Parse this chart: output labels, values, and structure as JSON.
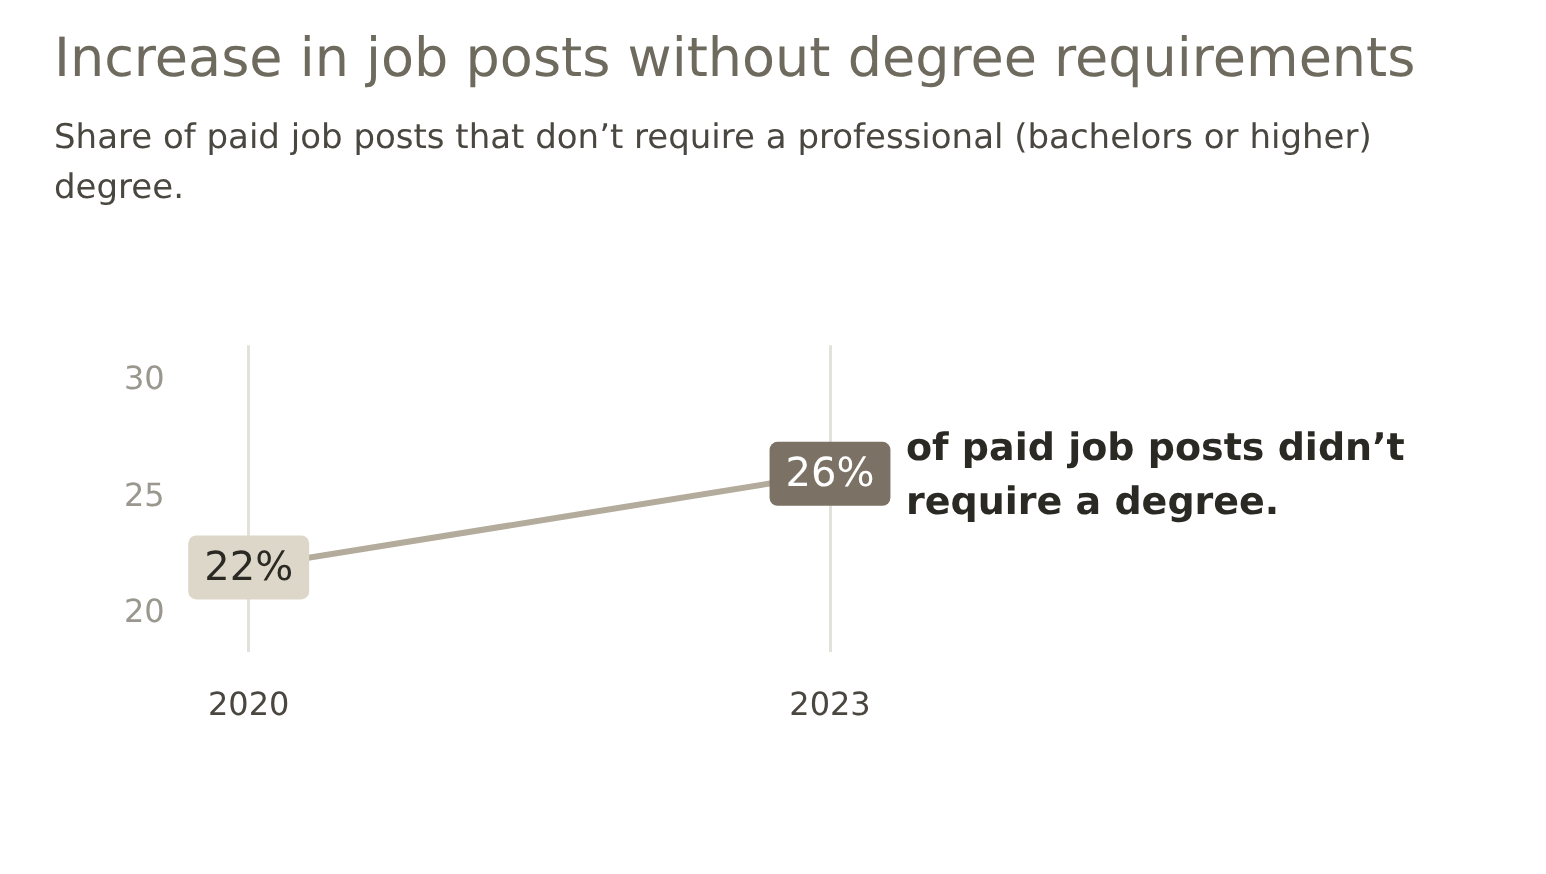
{
  "chart_data": {
    "type": "line",
    "title": "Increase in job posts without degree requirements",
    "subtitle": "Share of paid job posts that don’t require a professional (bachelors or higher) degree.",
    "categories": [
      "2020",
      "2023"
    ],
    "series": [
      {
        "color": "#b3ab9b",
        "values": [
          22,
          26
        ],
        "colors": [
          "#dcd7c9",
          "#7b7265"
        ],
        "value_labels": [
          "22%",
          "26%"
        ]
      }
    ],
    "ylim": [
      18.4,
      31.5
    ],
    "yticks": [
      20,
      25,
      30
    ],
    "grid": "x",
    "legend": false,
    "line_style": "solid",
    "annotations": [
      {
        "text": "of paid job posts didn’t require a degree.",
        "x": "2023",
        "y": 26
      }
    ]
  }
}
